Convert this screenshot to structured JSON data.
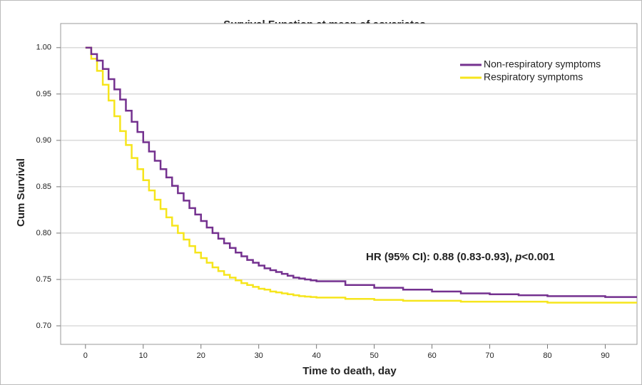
{
  "chart_data": {
    "type": "step",
    "title": "Survival Function at mean of covariates",
    "xlabel": "Time to death, day",
    "ylabel": "Cum Survival",
    "x": [
      0,
      1,
      2,
      3,
      4,
      5,
      6,
      7,
      8,
      9,
      10,
      11,
      12,
      13,
      14,
      15,
      16,
      17,
      18,
      19,
      20,
      21,
      22,
      23,
      24,
      25,
      26,
      27,
      28,
      29,
      30,
      31,
      32,
      33,
      34,
      35,
      36,
      37,
      38,
      39,
      40,
      45,
      50,
      55,
      60,
      65,
      70,
      75,
      80,
      85,
      90,
      95
    ],
    "series": [
      {
        "name": "Non-respiratory symptoms",
        "color": "#74318f",
        "values": [
          1.0,
          0.993,
          0.986,
          0.977,
          0.966,
          0.955,
          0.944,
          0.932,
          0.92,
          0.909,
          0.898,
          0.888,
          0.878,
          0.869,
          0.86,
          0.851,
          0.843,
          0.835,
          0.827,
          0.82,
          0.813,
          0.806,
          0.8,
          0.794,
          0.789,
          0.784,
          0.779,
          0.775,
          0.771,
          0.768,
          0.765,
          0.762,
          0.76,
          0.758,
          0.756,
          0.754,
          0.752,
          0.751,
          0.75,
          0.749,
          0.748,
          0.744,
          0.741,
          0.739,
          0.737,
          0.735,
          0.734,
          0.733,
          0.732,
          0.732,
          0.731,
          0.731
        ]
      },
      {
        "name": "Respiratory symptoms",
        "color": "#f6e51c",
        "values": [
          1.0,
          0.988,
          0.975,
          0.96,
          0.943,
          0.926,
          0.91,
          0.895,
          0.881,
          0.869,
          0.857,
          0.846,
          0.836,
          0.826,
          0.817,
          0.808,
          0.8,
          0.793,
          0.786,
          0.779,
          0.773,
          0.768,
          0.763,
          0.759,
          0.755,
          0.752,
          0.749,
          0.746,
          0.744,
          0.742,
          0.74,
          0.739,
          0.737,
          0.736,
          0.735,
          0.734,
          0.733,
          0.732,
          0.7315,
          0.731,
          0.7305,
          0.729,
          0.728,
          0.727,
          0.727,
          0.726,
          0.726,
          0.726,
          0.725,
          0.725,
          0.725,
          0.725
        ]
      }
    ],
    "xlim": [
      -4.3,
      95.5
    ],
    "ylim": [
      0.68,
      1.026
    ],
    "xticks": [
      0,
      10,
      20,
      30,
      40,
      50,
      60,
      70,
      80,
      90
    ],
    "yticks": [
      {
        "value": 1,
        "label": "1.00"
      },
      0.95,
      {
        "value": 0.9,
        "label": "0.90"
      },
      0.85,
      {
        "value": 0.8,
        "label": "0.80"
      },
      0.75,
      {
        "value": 0.7,
        "label": "0.70"
      }
    ],
    "grid": true,
    "legend": "upper right",
    "annotation": [
      "HR (95% CI): 0.88 (0.83-0.93), ",
      "p",
      "<0.001"
    ]
  }
}
